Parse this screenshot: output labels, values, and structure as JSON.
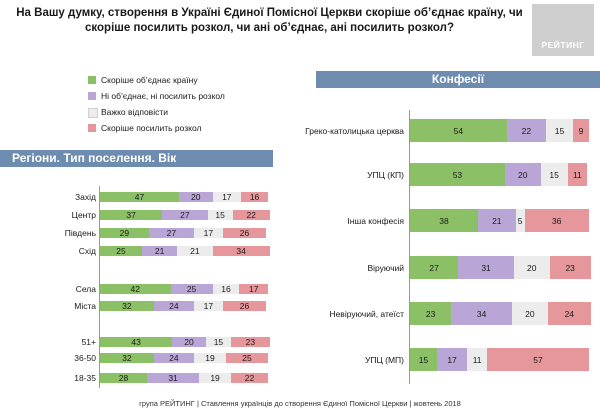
{
  "title": "На Вашу думку, створення в Україні Єдиної Помісної Церкви скоріше об’єднає країну, чи скоріше посилить розкол, чи ані об’єднає, ані посилить розкол?",
  "logo": "РЕЙТИНГ",
  "colors": {
    "unite": "#8cc066",
    "neither": "#b9a6d6",
    "hard": "#ececec",
    "split": "#e6979b",
    "banner": "#6e8cb0"
  },
  "legend": [
    {
      "label": "Скоріше об’єднає країну",
      "color": "#8cc066"
    },
    {
      "label": "Ні об’єднає, ні посилить розкол",
      "color": "#b9a6d6"
    },
    {
      "label": "Важко відповісти",
      "color": "#ececec"
    },
    {
      "label": "Скоріше посилить розкол",
      "color": "#e6979b"
    }
  ],
  "sections": {
    "regions": "Регіони. Тип поселення. Вік",
    "confessions": "Конфесії"
  },
  "footer": "група РЕЙТИНГ | Ставлення українців до створення Єдиної Помісної Церкви | жовтень 2018",
  "chart_data": [
    {
      "type": "bar",
      "stacked": true,
      "orientation": "horizontal",
      "title": "Регіони. Тип поселення. Вік",
      "categories": [
        "Захід",
        "Центр",
        "Південь",
        "Схід",
        "Села",
        "Міста",
        "51+",
        "36-50",
        "18-35"
      ],
      "series": [
        {
          "name": "Скоріше об’єднає країну",
          "values": [
            47,
            37,
            29,
            25,
            42,
            32,
            43,
            32,
            28
          ]
        },
        {
          "name": "Ні об’єднає, ні посилить розкол",
          "values": [
            20,
            27,
            27,
            21,
            25,
            24,
            20,
            24,
            31
          ]
        },
        {
          "name": "Важко відповісти",
          "values": [
            17,
            15,
            17,
            21,
            16,
            17,
            15,
            19,
            19
          ]
        },
        {
          "name": "Скоріше посилить розкол",
          "values": [
            16,
            22,
            26,
            34,
            17,
            26,
            23,
            25,
            22
          ]
        }
      ],
      "xlim": [
        0,
        100
      ]
    },
    {
      "type": "bar",
      "stacked": true,
      "orientation": "horizontal",
      "title": "Конфесії",
      "categories": [
        "Греко-католицька церква",
        "УПЦ (КП)",
        "Інша конфесія",
        "Віруючий",
        "Невіруючий, атеїст",
        "УПЦ (МП)"
      ],
      "series": [
        {
          "name": "Скоріше об’єднає країну",
          "values": [
            54,
            53,
            38,
            27,
            23,
            15
          ]
        },
        {
          "name": "Ні об’єднає, ні посилить розкол",
          "values": [
            22,
            20,
            21,
            31,
            34,
            17
          ]
        },
        {
          "name": "Важко відповісти",
          "values": [
            15,
            15,
            5,
            20,
            20,
            11
          ]
        },
        {
          "name": "Скоріше посилить розкол",
          "values": [
            9,
            11,
            36,
            23,
            24,
            57
          ]
        }
      ],
      "xlim": [
        0,
        100
      ]
    }
  ]
}
